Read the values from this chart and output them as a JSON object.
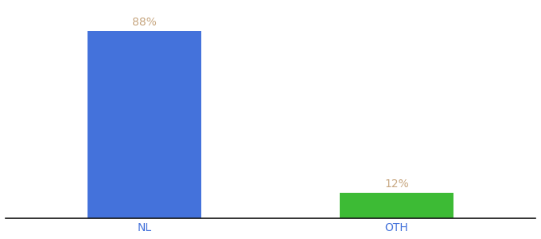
{
  "categories": [
    "NL",
    "OTH"
  ],
  "values": [
    88,
    12
  ],
  "bar_colors": [
    "#4472db",
    "#3dbb35"
  ],
  "label_texts": [
    "88%",
    "12%"
  ],
  "label_color": "#c8a882",
  "tick_color": "#4472db",
  "background_color": "#ffffff",
  "bar_width": 0.45,
  "ylim": [
    0,
    100
  ],
  "label_fontsize": 10,
  "tick_fontsize": 10,
  "axis_line_color": "#111111"
}
